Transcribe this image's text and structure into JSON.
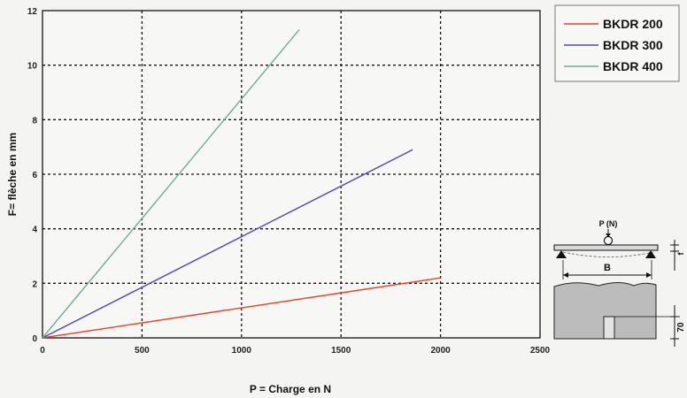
{
  "chart_data": {
    "type": "line",
    "xlabel": "P = Charge en N",
    "ylabel": "F= flèche en mm",
    "xlim": [
      0,
      2500
    ],
    "ylim": [
      0,
      12
    ],
    "x_ticks": [
      0,
      500,
      1000,
      1500,
      2000,
      2500
    ],
    "y_ticks": [
      0,
      2,
      4,
      6,
      8,
      10,
      12
    ],
    "grid": true,
    "legend_position": "top-right, outside",
    "series": [
      {
        "name": "BKDR 200",
        "color": "#e8412a",
        "x": [
          0,
          2000
        ],
        "y": [
          0,
          2.2
        ]
      },
      {
        "name": "BKDR 300",
        "color": "#5546b8",
        "x": [
          0,
          1860
        ],
        "y": [
          0,
          6.9
        ]
      },
      {
        "name": "BKDR 400",
        "color": "#6cae94",
        "x": [
          0,
          1290
        ],
        "y": [
          0,
          11.3
        ]
      }
    ]
  },
  "diagram": {
    "load_label": "P (N)",
    "span_label": "B",
    "deflection_label": "f",
    "depth_label": "70"
  }
}
